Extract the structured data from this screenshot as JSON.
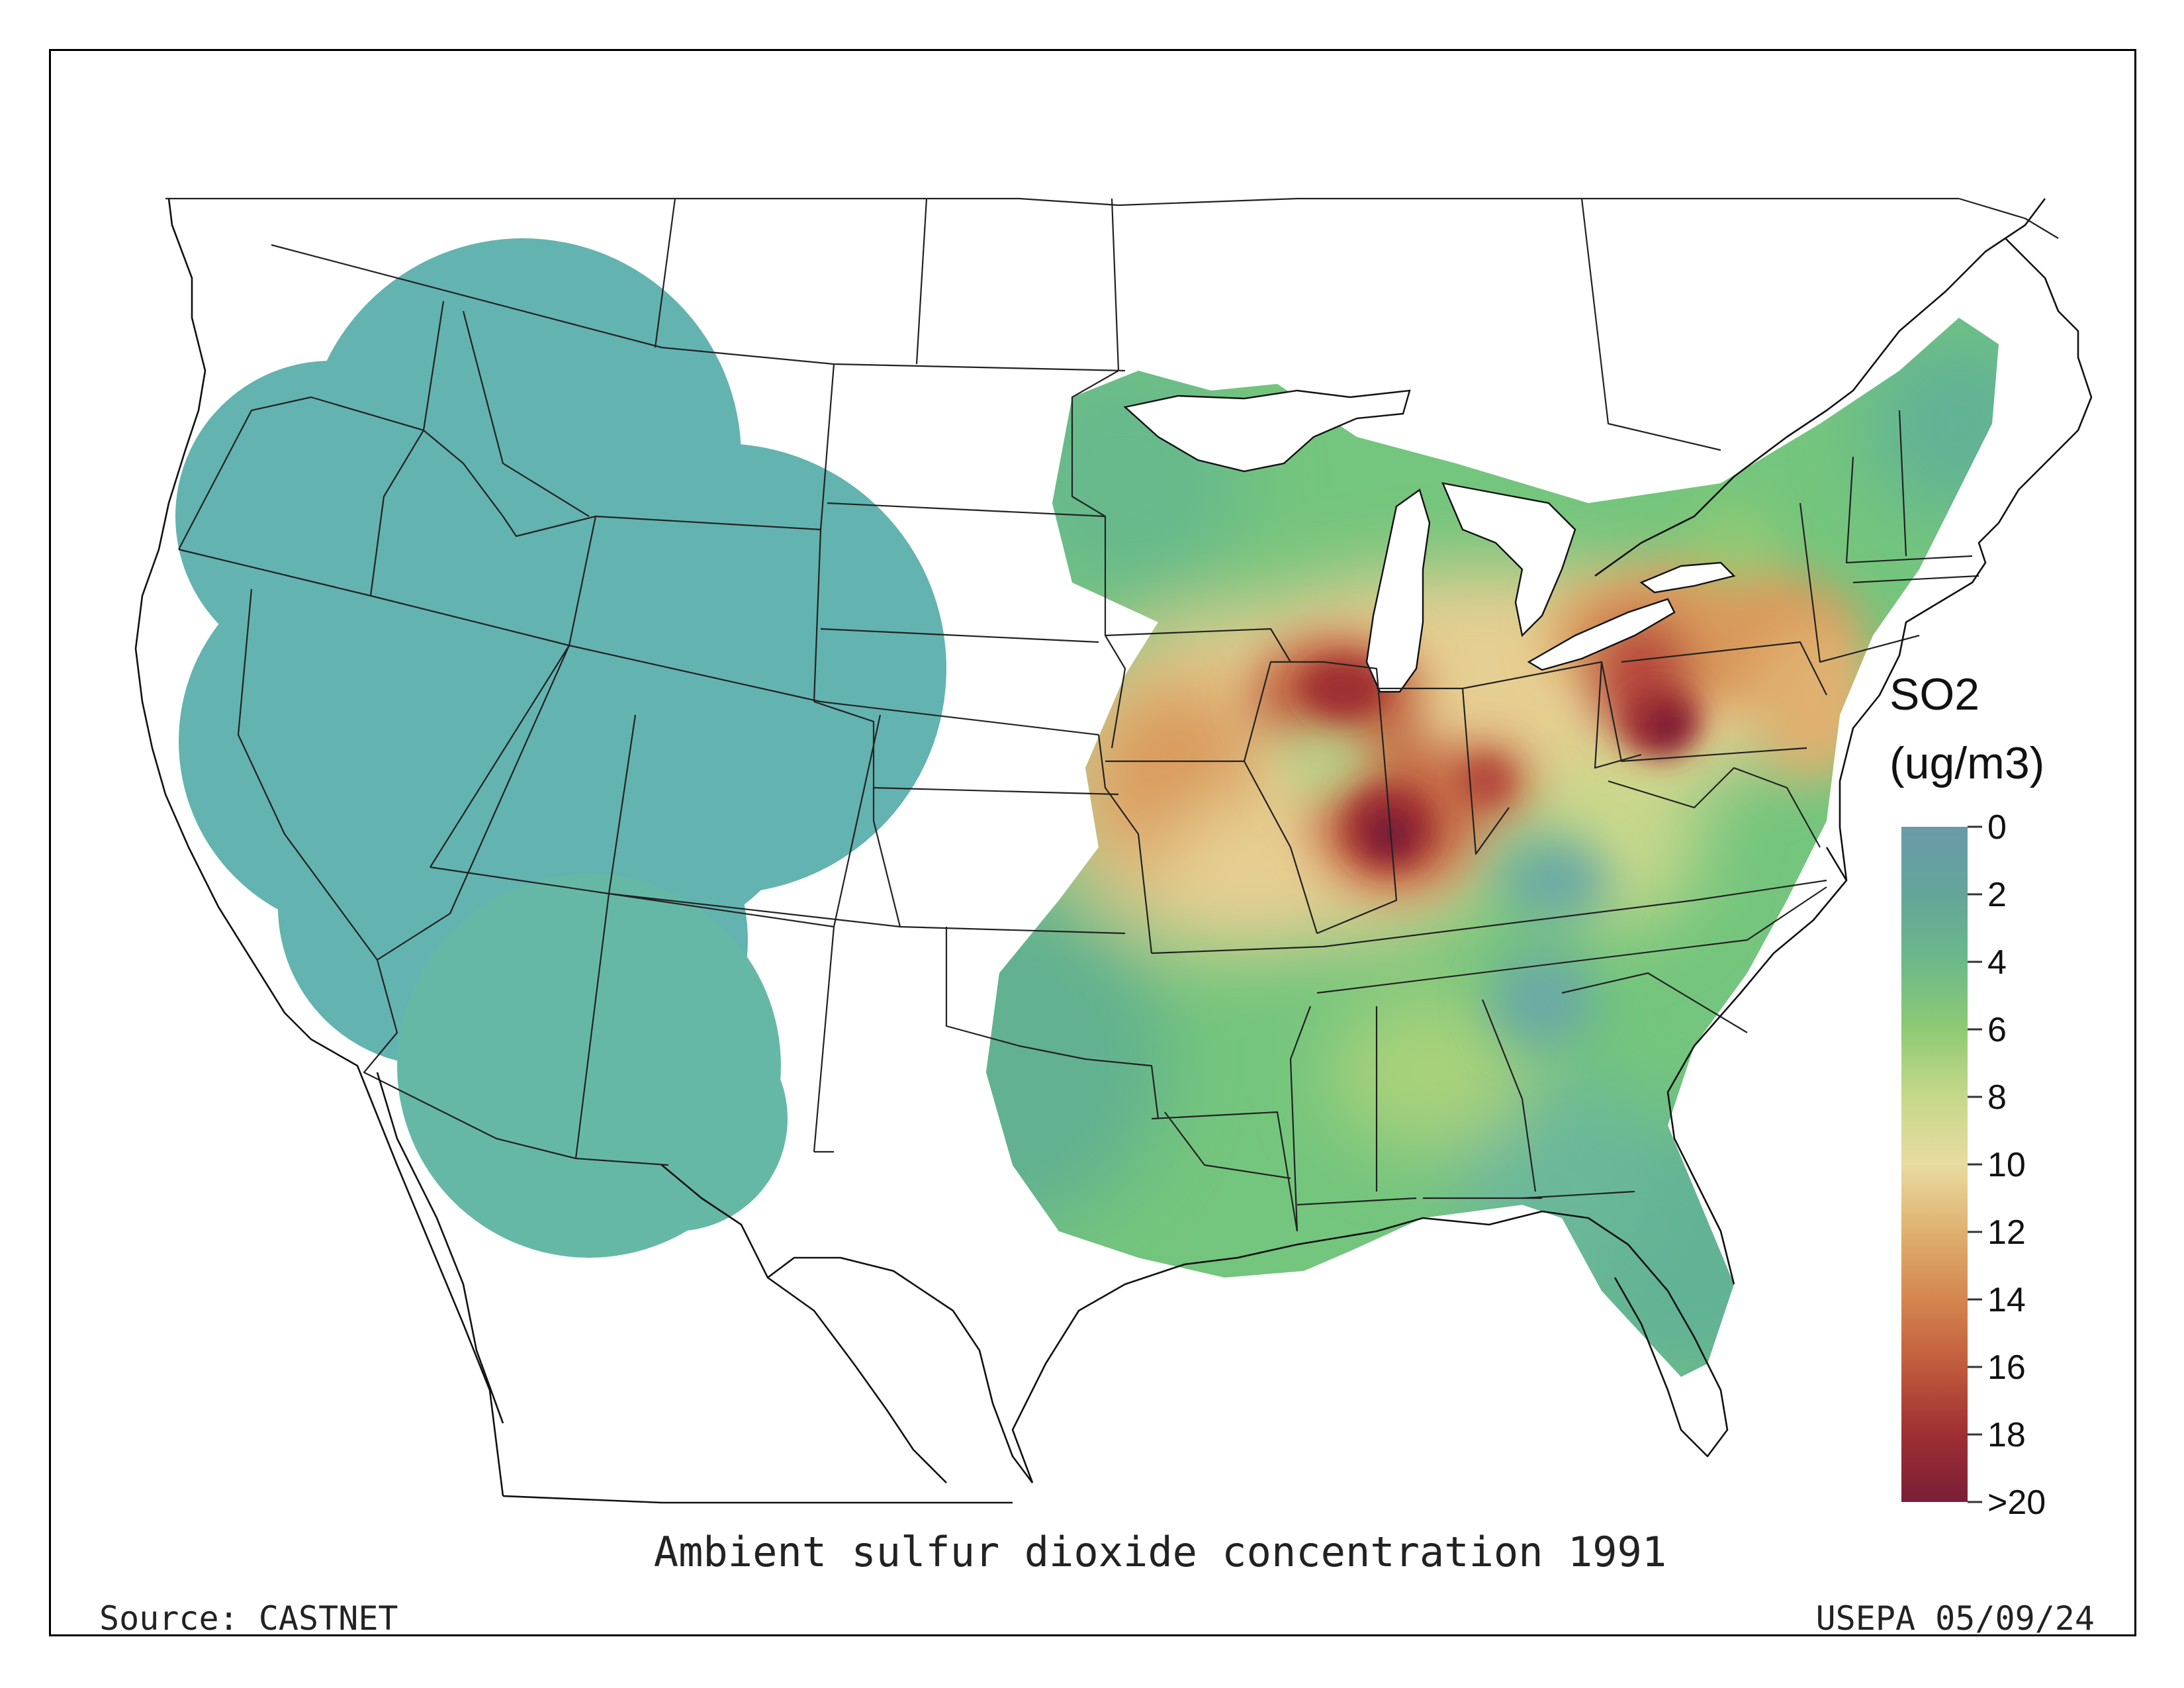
{
  "map": {
    "title": "Ambient sulfur dioxide concentration 1991",
    "source": "Source: CASTNET",
    "credit": "USEPA 05/09/24"
  },
  "legend": {
    "title_line1": "SO2",
    "title_line2": "(ug/m3)",
    "ticks": [
      "0",
      "2",
      "4",
      "6",
      "8",
      "10",
      "12",
      "14",
      "16",
      "18",
      ">20"
    ],
    "colors": [
      "#6a9aa8",
      "#64a59a",
      "#6cb98a",
      "#8fca74",
      "#c6d88a",
      "#e8dca0",
      "#dfb070",
      "#d4864f",
      "#c05a3c",
      "#9e2f33",
      "#7a1e38"
    ]
  },
  "colors": {
    "west_fill": "#63b3b0",
    "east_base": "#74c57d",
    "hotspot_dark": "#7a1e38",
    "hotspot_red": "#b23a35",
    "orange": "#d99a5c",
    "tan": "#e6cf92"
  }
}
